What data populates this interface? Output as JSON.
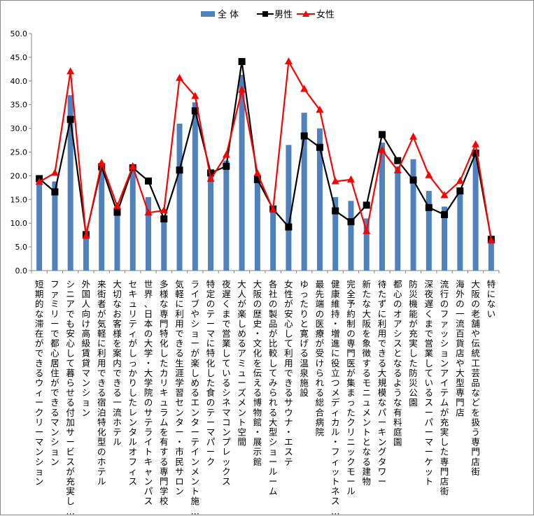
{
  "chart_data": {
    "type": "bar",
    "ylim": [
      0,
      50
    ],
    "yticks": [
      "0.0",
      "5.0",
      "10.0",
      "15.0",
      "20.0",
      "25.0",
      "30.0",
      "35.0",
      "40.0",
      "45.0",
      "50.0"
    ],
    "legend_position": "top",
    "grid": false,
    "categories": [
      "短期的な滞在ができるウィークリーマンション",
      "ファミリーで都心居住ができるマンション",
      "シニアでも安心して暮らせる付加サービスが充実し…",
      "外国人向け高級賃貸マンション",
      "来街者が気軽に利用できる宿泊特化型のホテル",
      "大切なお客様を案内できる一流ホテル",
      "セキュリティがしっかりしたレンタルオフィス",
      "世界、日本の大学・大学院のサテライトキャンパス",
      "多様な専門特化したカリキュラムを有する専門学校",
      "気軽に利用できる生涯学習センター・市民サロン",
      "ライブやショーが楽しめるエンターテインメント施…",
      "特定のテーマに特化した食のテーマパーク",
      "夜遅くまで営業しているシネマコンプレックス",
      "大人が楽しめるアミューズメント空間",
      "大阪の歴史・文化を伝える博物館・展示館",
      "各社の製品が比較してみられる大型ショールーム",
      "女性が安心して利用できるサウナ・エステ",
      "ゆったりと寛げる温泉施設",
      "最先端の医療が受けられる総合病院",
      "健康維持・増進に役立つメディカル・フィットネス…",
      "完全予約制の専門医が集まったクリニックモール",
      "新たな大阪を象徴するモニュメントとなる建物",
      "待たずに利用できる大規模なパーキングタワー",
      "都心のオアシスとなるような有料庭園",
      "防災機能が充実した防災公園",
      "深夜遅くまで営業しているスーパーマーケット",
      "流行のファッションアイテムが充実した専門店街",
      "海外の一流百貨店や大型専門店",
      "大阪の老舗や伝統工芸品などを扱う専門店街",
      "特にない"
    ],
    "series": [
      {
        "name": "全 体",
        "kind": "bar",
        "color": "#4f81bd",
        "values": [
          19.0,
          18.8,
          37.0,
          7.5,
          22.3,
          13.0,
          22.0,
          15.5,
          11.5,
          31.0,
          35.5,
          20.0,
          23.2,
          41.3,
          19.8,
          12.8,
          26.5,
          33.3,
          30.0,
          15.5,
          14.7,
          11.0,
          27.0,
          22.0,
          23.5,
          16.8,
          13.5,
          17.5,
          25.5,
          6.5
        ]
      },
      {
        "name": "男性",
        "kind": "line",
        "color": "#000000",
        "values": [
          19.4,
          16.6,
          31.9,
          7.6,
          21.9,
          12.3,
          21.7,
          18.9,
          10.9,
          21.2,
          33.7,
          20.6,
          22.0,
          44.1,
          19.2,
          13.0,
          9.2,
          28.4,
          26.0,
          12.6,
          10.3,
          13.8,
          28.7,
          23.2,
          19.1,
          13.3,
          11.8,
          16.8,
          24.8,
          6.6
        ]
      },
      {
        "name": "女性",
        "kind": "line",
        "color": "#ff0000",
        "values": [
          18.7,
          20.6,
          42.0,
          7.3,
          22.7,
          13.6,
          22.0,
          12.2,
          12.7,
          40.6,
          36.8,
          19.3,
          24.4,
          38.1,
          20.5,
          12.8,
          44.1,
          38.3,
          33.9,
          18.8,
          19.2,
          8.3,
          25.4,
          21.1,
          28.2,
          20.1,
          15.9,
          18.9,
          26.6,
          6.3
        ]
      }
    ]
  }
}
